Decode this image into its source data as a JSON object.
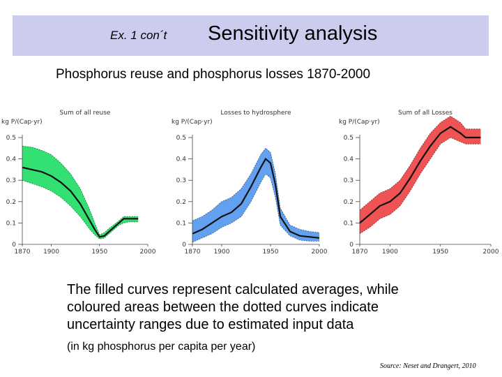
{
  "header": {
    "tag": "Ex. 1 con´t",
    "title": "Sensitivity analysis"
  },
  "subtitle": "Phosphorus reuse and phosphorus losses 1870-2000",
  "caption": {
    "line1": "The filled curves represent calculated averages, while",
    "line2": "coloured areas between the dotted curves indicate",
    "line3": "uncertainty ranges due to estimated input data",
    "units_note": "(in kg phosphorus per capita per year)"
  },
  "source": "Source: Neset and Drangert, 2010",
  "chart_data": [
    {
      "type": "area",
      "title": "Sum of all reuse",
      "ylabel": "kg P/(Cap·yr)",
      "color": "#22dd66",
      "xlim": [
        1870,
        2000
      ],
      "ylim": [
        0,
        0.5
      ],
      "xticks": [
        1870,
        1900,
        1950,
        2000
      ],
      "xtick_labels": [
        "1870",
        "1900",
        "1950",
        "2000"
      ],
      "yticks": [
        0,
        0.1,
        0.2,
        0.3,
        0.4,
        0.5
      ],
      "ytick_labels": [
        "0",
        "0.1",
        "0.2",
        "0.3",
        "0.4",
        "0.5"
      ],
      "x": [
        1870,
        1880,
        1890,
        1900,
        1910,
        1920,
        1930,
        1940,
        1945,
        1950,
        1955,
        1960,
        1970,
        1975,
        1980,
        1990
      ],
      "mean": [
        0.36,
        0.35,
        0.34,
        0.32,
        0.29,
        0.25,
        0.19,
        0.11,
        0.07,
        0.035,
        0.04,
        0.06,
        0.1,
        0.12,
        0.12,
        0.12
      ],
      "lower": [
        0.3,
        0.285,
        0.27,
        0.25,
        0.22,
        0.18,
        0.13,
        0.07,
        0.045,
        0.025,
        0.03,
        0.05,
        0.09,
        0.1,
        0.105,
        0.105
      ],
      "upper": [
        0.46,
        0.455,
        0.44,
        0.42,
        0.38,
        0.33,
        0.26,
        0.16,
        0.1,
        0.045,
        0.055,
        0.075,
        0.11,
        0.13,
        0.13,
        0.13
      ]
    },
    {
      "type": "area",
      "title": "Losses to hydrosphere",
      "ylabel": "kg P/(Cap·yr)",
      "color": "#5599ee",
      "xlim": [
        1870,
        2000
      ],
      "ylim": [
        0,
        0.5
      ],
      "xticks": [
        1870,
        1900,
        1950,
        2000
      ],
      "xtick_labels": [
        "1870",
        "1900",
        "1950",
        "2000"
      ],
      "yticks": [
        0,
        0.1,
        0.2,
        0.3,
        0.4,
        0.5
      ],
      "ytick_labels": [
        "0",
        "0.1",
        "0.2",
        "0.3",
        "0.4",
        "0.5"
      ],
      "x": [
        1870,
        1880,
        1890,
        1900,
        1910,
        1920,
        1930,
        1940,
        1945,
        1950,
        1955,
        1960,
        1970,
        1980,
        1990,
        2000
      ],
      "mean": [
        0.05,
        0.07,
        0.1,
        0.13,
        0.15,
        0.19,
        0.27,
        0.36,
        0.4,
        0.38,
        0.28,
        0.13,
        0.06,
        0.04,
        0.035,
        0.03
      ],
      "lower": [
        0.01,
        0.03,
        0.05,
        0.08,
        0.1,
        0.13,
        0.2,
        0.29,
        0.33,
        0.31,
        0.22,
        0.09,
        0.04,
        0.02,
        0.015,
        0.015
      ],
      "upper": [
        0.11,
        0.13,
        0.16,
        0.2,
        0.22,
        0.26,
        0.33,
        0.42,
        0.45,
        0.43,
        0.33,
        0.17,
        0.09,
        0.07,
        0.06,
        0.055
      ]
    },
    {
      "type": "area",
      "title": "Sum of all Losses",
      "ylabel": "kg P/(Cap·yr)",
      "color": "#ee4444",
      "xlim": [
        1870,
        2000
      ],
      "ylim": [
        0,
        0.5
      ],
      "xticks": [
        1870,
        1900,
        1950,
        2000
      ],
      "xtick_labels": [
        "1870",
        "1900",
        "1950",
        "2000"
      ],
      "yticks": [
        0,
        0.1,
        0.2,
        0.3,
        0.4,
        0.5
      ],
      "ytick_labels": [
        "0",
        "0.1",
        "0.2",
        "0.3",
        "0.4",
        "0.5"
      ],
      "x": [
        1870,
        1880,
        1890,
        1900,
        1910,
        1920,
        1930,
        1940,
        1950,
        1960,
        1970,
        1975,
        1980,
        1990
      ],
      "mean": [
        0.1,
        0.14,
        0.18,
        0.2,
        0.24,
        0.31,
        0.39,
        0.46,
        0.52,
        0.55,
        0.52,
        0.5,
        0.5,
        0.5
      ],
      "lower": [
        0.05,
        0.08,
        0.12,
        0.14,
        0.18,
        0.25,
        0.33,
        0.4,
        0.47,
        0.5,
        0.48,
        0.47,
        0.47,
        0.47
      ],
      "upper": [
        0.16,
        0.2,
        0.24,
        0.26,
        0.3,
        0.37,
        0.45,
        0.52,
        0.57,
        0.6,
        0.57,
        0.54,
        0.54,
        0.54
      ]
    }
  ]
}
